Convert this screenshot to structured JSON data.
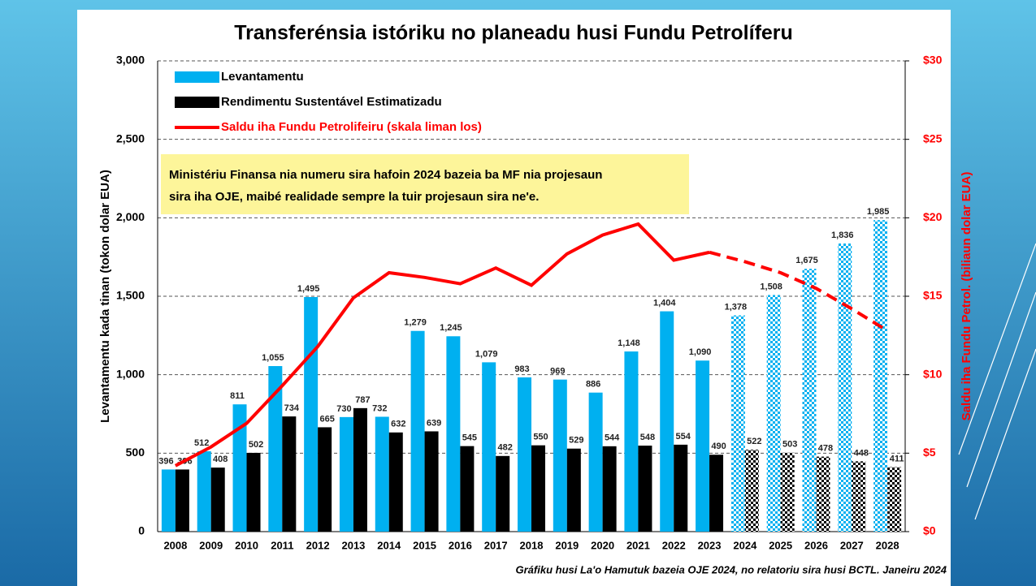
{
  "chart_data": {
    "type": "bar",
    "title": "Transferénsia istóriku no planeadu husi Fundu Petrolíferu",
    "y_label": "Levantamentu kada tinan (tokon dolar EUA)",
    "y2_label": "Saldu iha Fundu Petrol. (biliaun dolar EUA)",
    "annotation": [
      "Ministériu Finansa nia numeru sira hafoin 2024 bazeia ba MF nia projesaun",
      "sira iha OJE, maibé realidade sempre la tuir projesaun sira ne'e."
    ],
    "source": "Gráfiku husi La'o Hamutuk bazeia OJE 2024, no relatoriu sira husi BCTL. Janeiru 2024",
    "projected_from": "2024",
    "categories": [
      "2008",
      "2009",
      "2010",
      "2011",
      "2012",
      "2013",
      "2014",
      "2015",
      "2016",
      "2017",
      "2018",
      "2019",
      "2020",
      "2021",
      "2022",
      "2023",
      "2024",
      "2025",
      "2026",
      "2027",
      "2028"
    ],
    "series": [
      {
        "name": "Levantamentu",
        "type": "bar",
        "color": "#00b0f0",
        "values": [
          396,
          512,
          811,
          1055,
          1495,
          730,
          732,
          1279,
          1245,
          1079,
          983,
          969,
          886,
          1148,
          1404,
          1090,
          1378,
          1508,
          1675,
          1836,
          1985
        ],
        "value_labels": [
          "396",
          "512",
          "811",
          "1,055",
          "1,495",
          "730",
          "732",
          "1,279",
          "1,245",
          "1,079",
          "983",
          "969",
          "886",
          "1,148",
          "1,404",
          "1,090",
          "1,378",
          "1,508",
          "1,675",
          "1,836",
          "1,985"
        ]
      },
      {
        "name": "Rendimentu Sustentável Estimatizadu",
        "type": "bar",
        "color": "#000000",
        "values": [
          396,
          408,
          502,
          734,
          665,
          787,
          632,
          639,
          545,
          482,
          550,
          529,
          544,
          548,
          554,
          490,
          522,
          503,
          478,
          448,
          411
        ],
        "value_labels": [
          "396",
          "408",
          "502",
          "734",
          "665",
          "787",
          "632",
          "639",
          "545",
          "482",
          "550",
          "529",
          "544",
          "548",
          "554",
          "490",
          "522",
          "503",
          "478",
          "448",
          "411"
        ]
      },
      {
        "name": "Saldu iha Fundu Petrolifeiru (skala liman los)",
        "type": "line",
        "color": "#ff0000",
        "axis": "y2",
        "values": [
          4.2,
          5.4,
          6.9,
          9.3,
          11.8,
          14.9,
          16.5,
          16.2,
          15.8,
          16.8,
          15.7,
          17.7,
          18.9,
          19.6,
          17.3,
          17.8,
          17.2,
          16.5,
          15.5,
          14.2,
          12.8
        ]
      }
    ],
    "ylim": [
      0,
      3000
    ],
    "yticks": [
      0,
      500,
      {
        "value": 1000,
        "label": "1,000"
      },
      {
        "value": 1500,
        "label": "1,500"
      },
      {
        "value": 2000,
        "label": "2,000"
      },
      {
        "value": 2500,
        "label": "2,500"
      },
      {
        "value": 3000,
        "label": "3,000"
      }
    ],
    "y2lim": [
      0,
      30
    ],
    "y2ticks": [
      {
        "value": 0,
        "label": "$0"
      },
      {
        "value": 5,
        "label": "$5"
      },
      {
        "value": 10,
        "label": "$10"
      },
      {
        "value": 15,
        "label": "$15"
      },
      {
        "value": 20,
        "label": "$20"
      },
      {
        "value": 25,
        "label": "$25"
      },
      {
        "value": 30,
        "label": "$30"
      }
    ],
    "grid": true,
    "legend": "upper left"
  }
}
